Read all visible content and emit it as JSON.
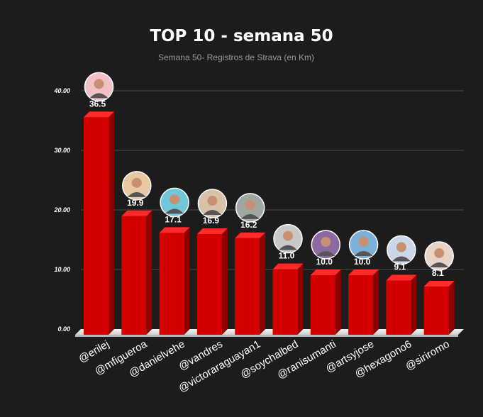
{
  "chart_data": {
    "type": "bar",
    "title": "TOP 10 - semana 50",
    "subtitle": "Semana 50- Registros de Strava (en Km)",
    "xlabel": "",
    "ylabel": "",
    "ylim": [
      0,
      40
    ],
    "yticks": [
      "0.00",
      "10.00",
      "20.00",
      "30.00",
      "40.00"
    ],
    "grid": true,
    "bar_color": "#d40000",
    "categories": [
      "@erilej",
      "@mfigueroa",
      "@danielvehe",
      "@vandres",
      "@victoraraguayan1",
      "@soychalbed",
      "@ranisumanti",
      "@artsyjose",
      "@hexagono6",
      "@siriromo"
    ],
    "values": [
      36.5,
      19.9,
      17.1,
      16.9,
      16.2,
      11.0,
      10.0,
      10.0,
      9.1,
      8.1
    ],
    "data_labels": [
      "36.5",
      "19.9",
      "17.1",
      "16.9",
      "16.2",
      "11.0",
      "10.0",
      "10.0",
      "9.1",
      "8.1"
    ]
  }
}
